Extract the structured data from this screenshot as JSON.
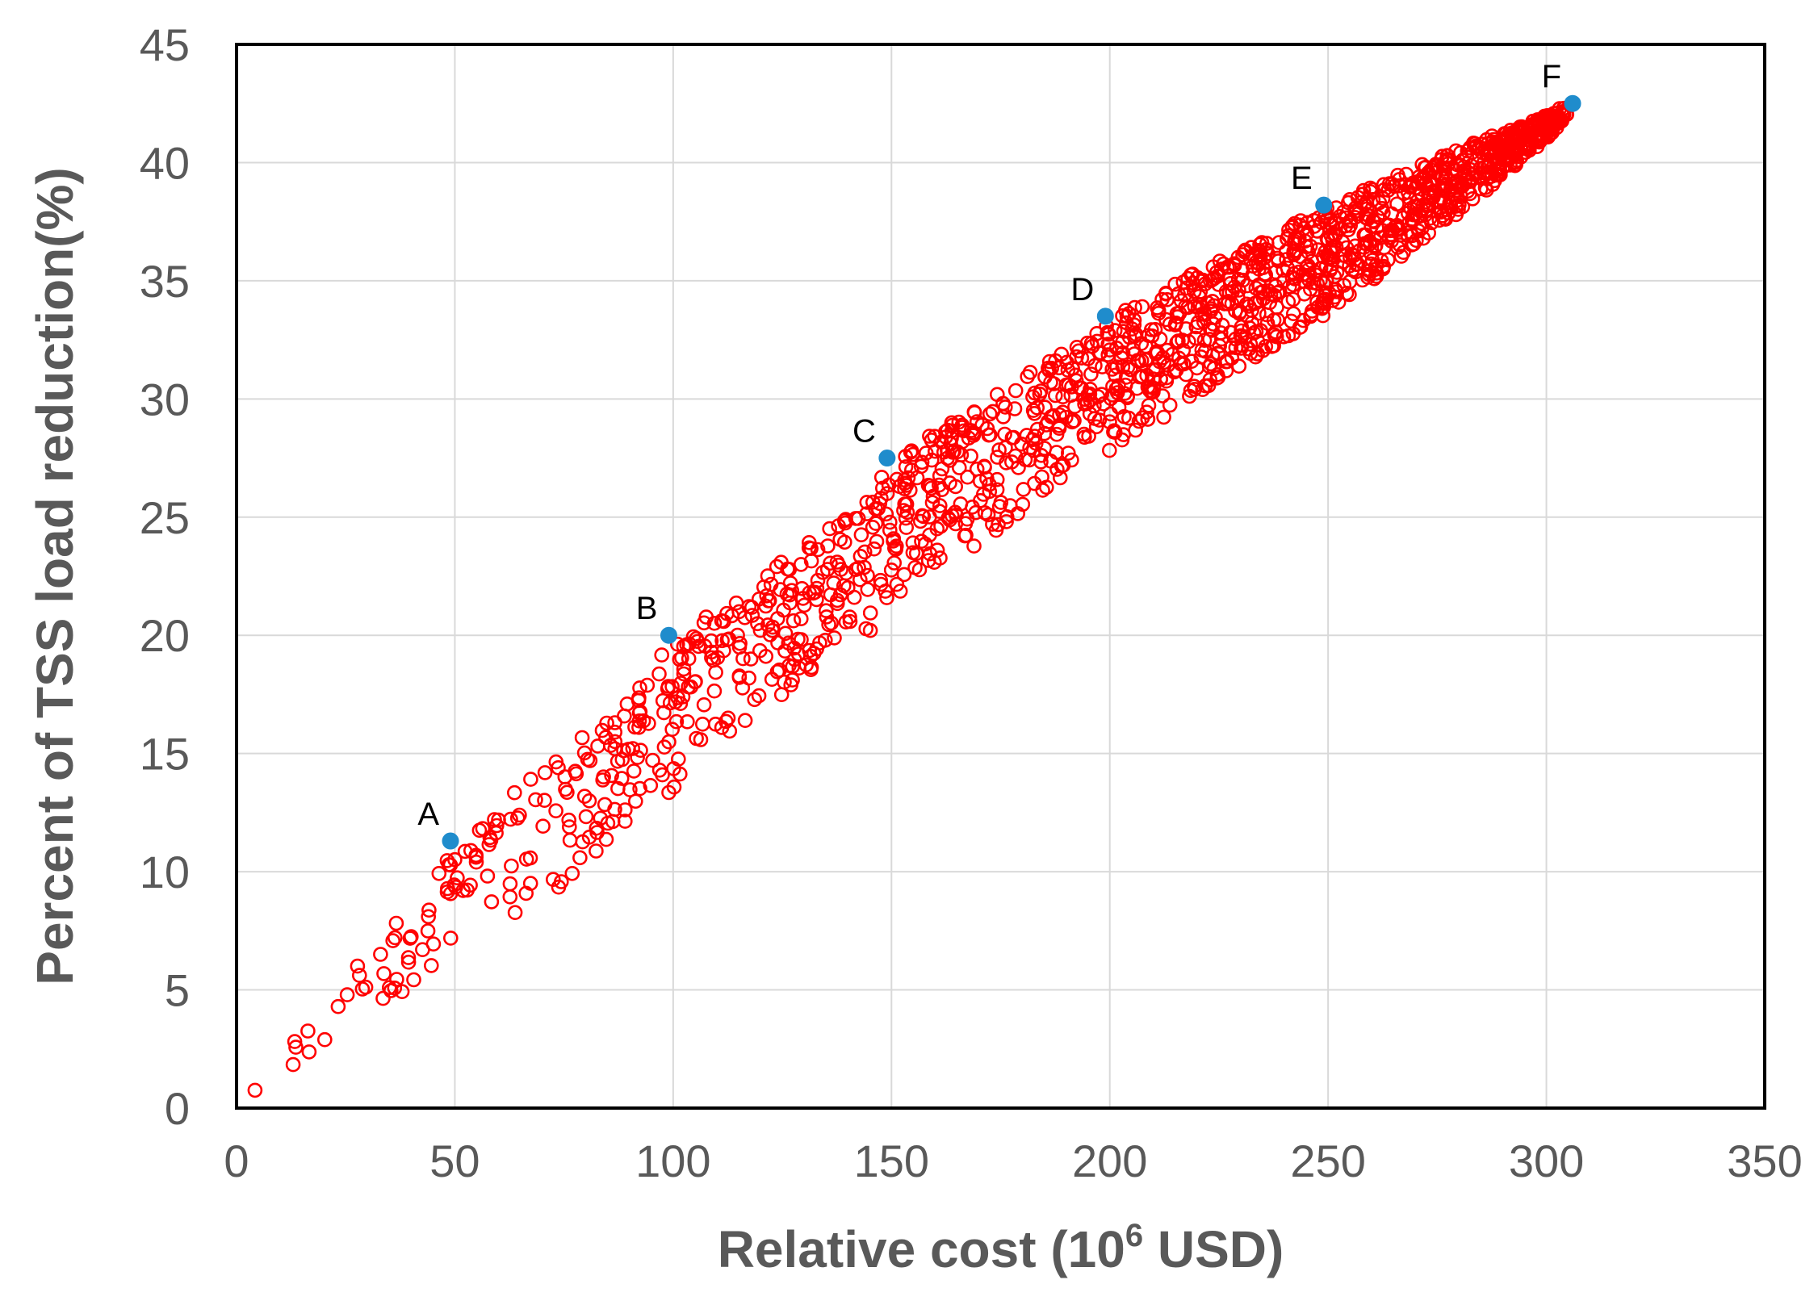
{
  "chart_data": {
    "type": "scatter",
    "title": "",
    "xlabel": {
      "prefix": "Relative cost (10",
      "superscript": "6",
      "suffix": " USD)"
    },
    "ylabel": "Percent of TSS load reduction(%)",
    "xlim": [
      0,
      350
    ],
    "ylim": [
      0,
      45
    ],
    "x_ticks": [
      0,
      50,
      100,
      150,
      200,
      250,
      300,
      350
    ],
    "y_ticks": [
      0,
      5,
      10,
      15,
      20,
      25,
      30,
      35,
      40,
      45
    ],
    "x_tick_labels": [
      "0",
      "50",
      "100",
      "150",
      "200",
      "250",
      "300",
      "350"
    ],
    "y_tick_labels": [
      "0",
      "5",
      "10",
      "15",
      "20",
      "25",
      "30",
      "35",
      "40",
      "45"
    ],
    "grid": true,
    "series": [
      {
        "role": "solutions",
        "color": "#ff0000",
        "marker": "open-circle",
        "envelope": {
          "x": [
            0,
            10,
            20,
            30,
            40,
            50,
            60,
            70,
            80,
            90,
            100,
            120,
            140,
            150,
            160,
            180,
            200,
            220,
            240,
            250,
            260,
            280,
            300,
            305
          ],
          "upper": [
            0,
            2.5,
            5.0,
            7.2,
            9.2,
            11.2,
            12.8,
            14.4,
            16.0,
            17.5,
            19.9,
            22.5,
            25.1,
            27.4,
            28.6,
            31.0,
            33.4,
            35.4,
            37.2,
            38.2,
            39.0,
            40.6,
            42.0,
            42.5
          ],
          "lower": [
            0,
            1.0,
            2.8,
            4.0,
            4.8,
            5.8,
            7.2,
            8.7,
            10.3,
            11.7,
            13.5,
            16.8,
            19.3,
            21.0,
            22.5,
            25.2,
            27.6,
            30.2,
            32.5,
            33.6,
            35.0,
            37.8,
            41.0,
            42.0
          ]
        },
        "point_count": 1600
      },
      {
        "role": "selected-solutions",
        "color": "#1f8ccc",
        "marker": "filled-circle",
        "points": [
          {
            "label": "A",
            "x": 49,
            "y": 11.3
          },
          {
            "label": "B",
            "x": 99,
            "y": 20.0
          },
          {
            "label": "C",
            "x": 149,
            "y": 27.5
          },
          {
            "label": "D",
            "x": 199,
            "y": 33.5
          },
          {
            "label": "E",
            "x": 249,
            "y": 38.2
          },
          {
            "label": "F",
            "x": 306,
            "y": 42.5
          }
        ]
      }
    ],
    "colors": {
      "scatter_stroke": "#ff0000",
      "highlight_fill": "#1f8ccc",
      "grid": "#d9d9d9",
      "frame": "#000000",
      "text": "#595959"
    }
  }
}
